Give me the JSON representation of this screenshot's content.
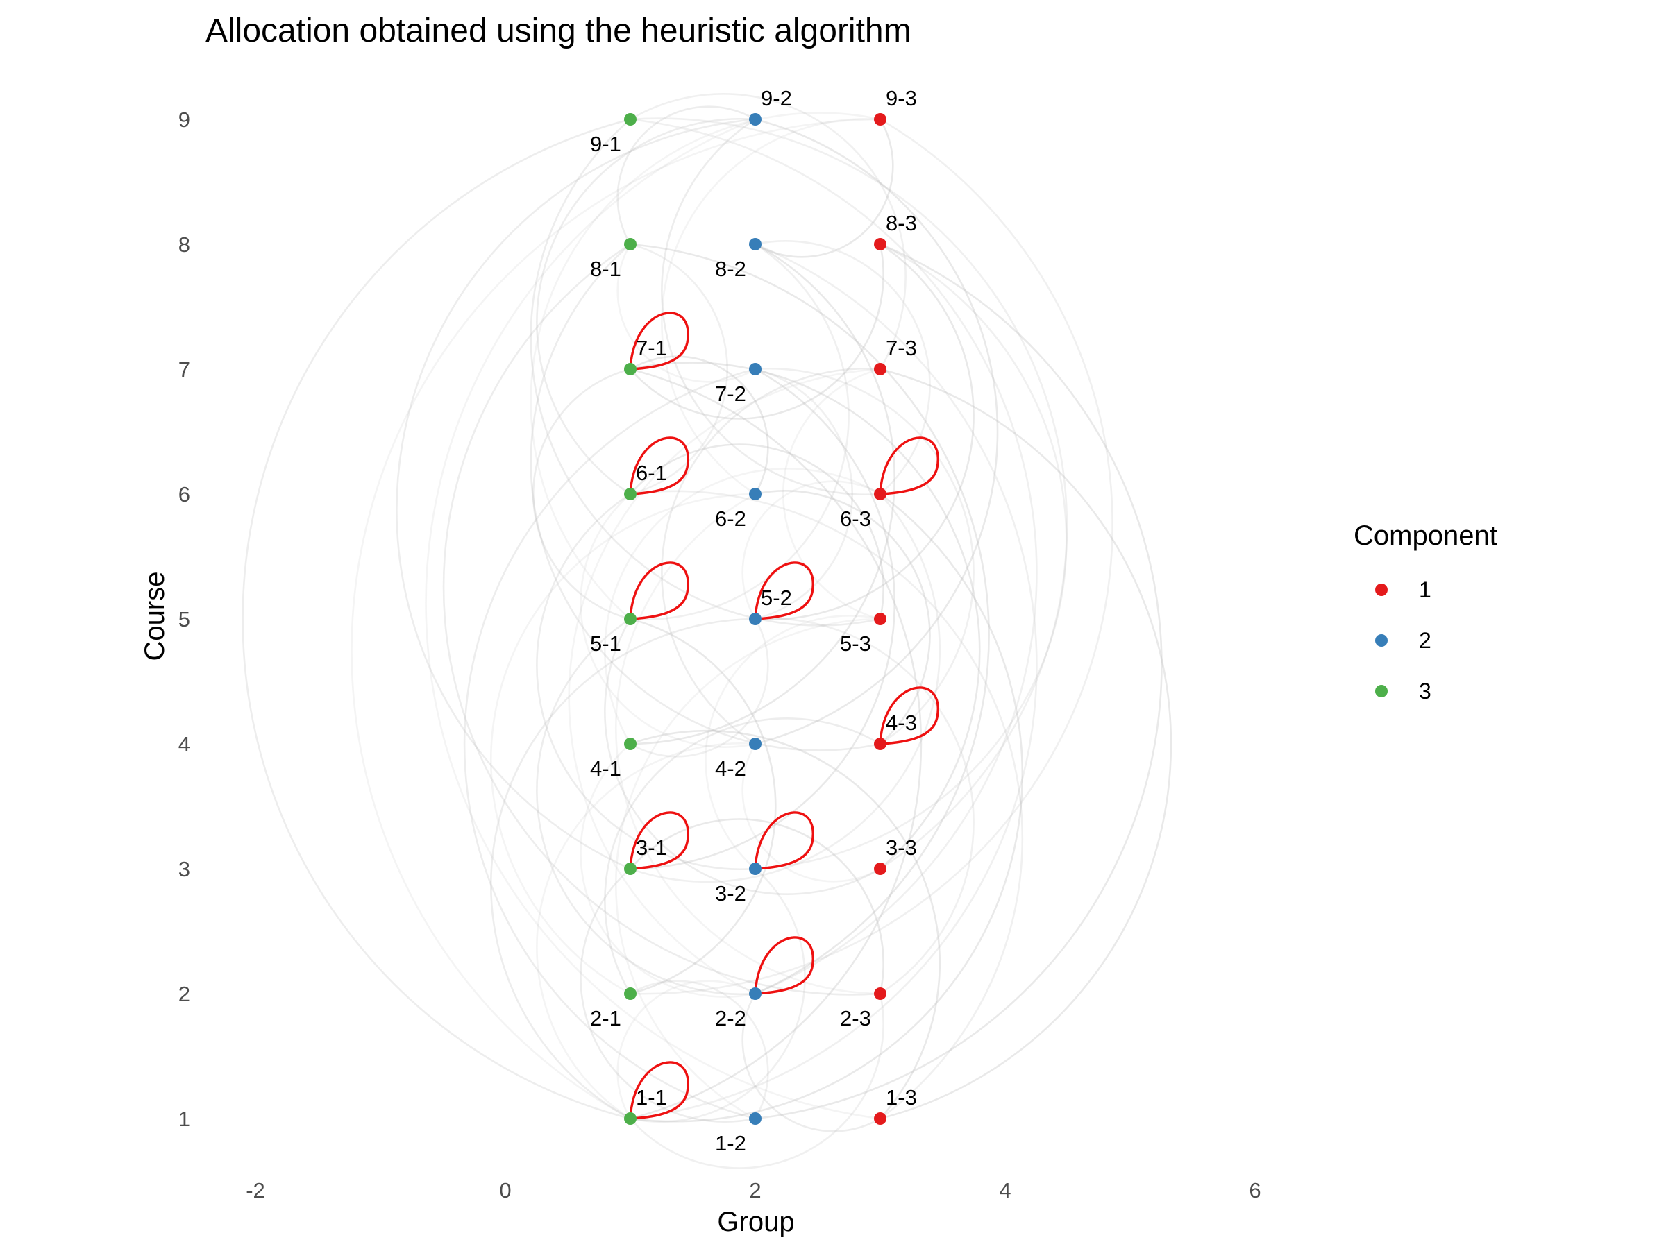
{
  "chart_data": {
    "type": "scatter",
    "title": "Allocation obtained using the heuristic algorithm",
    "xlabel": "Group",
    "ylabel": "Course",
    "xlim": [
      -2.2,
      6.6
    ],
    "ylim": [
      0.6,
      9.4
    ],
    "x_ticks": [
      -2,
      0,
      2,
      4,
      6
    ],
    "y_ticks": [
      1,
      2,
      3,
      4,
      5,
      6,
      7,
      8,
      9
    ],
    "grid": false,
    "legend": {
      "title": "Component",
      "position": "right",
      "entries": [
        {
          "label": "1",
          "color": "#e41a1c"
        },
        {
          "label": "2",
          "color": "#377eb8"
        },
        {
          "label": "3",
          "color": "#4daf4a"
        }
      ]
    },
    "component_colors": {
      "1": "#e41a1c",
      "2": "#377eb8",
      "3": "#4daf4a"
    },
    "self_loop_color": "#ee1111",
    "edge_color": "#b8b8b8",
    "points": [
      {
        "label": "1-1",
        "x": 1,
        "y": 1,
        "component": 3,
        "label_pos": "above"
      },
      {
        "label": "1-2",
        "x": 2,
        "y": 1,
        "component": 2,
        "label_pos": "below"
      },
      {
        "label": "1-3",
        "x": 3,
        "y": 1,
        "component": 1,
        "label_pos": "above"
      },
      {
        "label": "2-1",
        "x": 1,
        "y": 2,
        "component": 3,
        "label_pos": "below"
      },
      {
        "label": "2-2",
        "x": 2,
        "y": 2,
        "component": 2,
        "label_pos": "below"
      },
      {
        "label": "2-3",
        "x": 3,
        "y": 2,
        "component": 1,
        "label_pos": "below"
      },
      {
        "label": "3-1",
        "x": 1,
        "y": 3,
        "component": 3,
        "label_pos": "above"
      },
      {
        "label": "3-2",
        "x": 2,
        "y": 3,
        "component": 2,
        "label_pos": "below"
      },
      {
        "label": "3-3",
        "x": 3,
        "y": 3,
        "component": 1,
        "label_pos": "above"
      },
      {
        "label": "4-1",
        "x": 1,
        "y": 4,
        "component": 3,
        "label_pos": "below"
      },
      {
        "label": "4-2",
        "x": 2,
        "y": 4,
        "component": 2,
        "label_pos": "below"
      },
      {
        "label": "4-3",
        "x": 3,
        "y": 4,
        "component": 1,
        "label_pos": "above"
      },
      {
        "label": "5-1",
        "x": 1,
        "y": 5,
        "component": 3,
        "label_pos": "below"
      },
      {
        "label": "5-2",
        "x": 2,
        "y": 5,
        "component": 2,
        "label_pos": "above"
      },
      {
        "label": "5-3",
        "x": 3,
        "y": 5,
        "component": 1,
        "label_pos": "below"
      },
      {
        "label": "6-1",
        "x": 1,
        "y": 6,
        "component": 3,
        "label_pos": "above"
      },
      {
        "label": "6-2",
        "x": 2,
        "y": 6,
        "component": 2,
        "label_pos": "below"
      },
      {
        "label": "6-3",
        "x": 3,
        "y": 6,
        "component": 1,
        "label_pos": "below"
      },
      {
        "label": "7-1",
        "x": 1,
        "y": 7,
        "component": 3,
        "label_pos": "above"
      },
      {
        "label": "7-2",
        "x": 2,
        "y": 7,
        "component": 2,
        "label_pos": "below"
      },
      {
        "label": "7-3",
        "x": 3,
        "y": 7,
        "component": 1,
        "label_pos": "above"
      },
      {
        "label": "8-1",
        "x": 1,
        "y": 8,
        "component": 3,
        "label_pos": "below"
      },
      {
        "label": "8-2",
        "x": 2,
        "y": 8,
        "component": 2,
        "label_pos": "below"
      },
      {
        "label": "8-3",
        "x": 3,
        "y": 8,
        "component": 1,
        "label_pos": "above"
      },
      {
        "label": "9-1",
        "x": 1,
        "y": 9,
        "component": 3,
        "label_pos": "below"
      },
      {
        "label": "9-2",
        "x": 2,
        "y": 9,
        "component": 2,
        "label_pos": "above"
      },
      {
        "label": "9-3",
        "x": 3,
        "y": 9,
        "component": 1,
        "label_pos": "above"
      }
    ],
    "self_loops": [
      "1-1",
      "2-2",
      "3-1",
      "3-2",
      "4-3",
      "5-1",
      "5-2",
      "6-1",
      "6-3",
      "7-1"
    ],
    "edges": [
      [
        "1-1",
        "2-2"
      ],
      [
        "1-1",
        "8-2"
      ],
      [
        "1-1",
        "9-1"
      ],
      [
        "1-1",
        "6-3"
      ],
      [
        "1-1",
        "4-2"
      ],
      [
        "1-1",
        "2-3"
      ],
      [
        "1-1",
        "5-2"
      ],
      [
        "1-1",
        "7-1"
      ],
      [
        "1-1",
        "9-3"
      ],
      [
        "1-1",
        "3-2"
      ],
      [
        "1-2",
        "3-1"
      ],
      [
        "1-2",
        "8-3"
      ],
      [
        "1-2",
        "5-3"
      ],
      [
        "1-2",
        "2-1"
      ],
      [
        "1-2",
        "7-2"
      ],
      [
        "1-3",
        "4-1"
      ],
      [
        "1-3",
        "9-2"
      ],
      [
        "1-3",
        "6-1"
      ],
      [
        "1-3",
        "2-2"
      ],
      [
        "1-3",
        "7-3"
      ],
      [
        "2-1",
        "6-2"
      ],
      [
        "2-1",
        "9-3"
      ],
      [
        "2-1",
        "4-3"
      ],
      [
        "2-1",
        "5-1"
      ],
      [
        "2-2",
        "7-3"
      ],
      [
        "2-2",
        "9-1"
      ],
      [
        "2-2",
        "5-1"
      ],
      [
        "2-2",
        "8-1"
      ],
      [
        "2-2",
        "4-1"
      ],
      [
        "2-3",
        "5-2"
      ],
      [
        "2-3",
        "8-1"
      ],
      [
        "2-3",
        "3-1"
      ],
      [
        "2-3",
        "6-2"
      ],
      [
        "3-1",
        "6-3"
      ],
      [
        "3-1",
        "9-2"
      ],
      [
        "3-1",
        "7-2"
      ],
      [
        "3-2",
        "5-3"
      ],
      [
        "3-2",
        "8-3"
      ],
      [
        "3-2",
        "6-1"
      ],
      [
        "3-3",
        "7-1"
      ],
      [
        "3-3",
        "4-2"
      ],
      [
        "3-3",
        "9-1"
      ],
      [
        "3-3",
        "5-1"
      ],
      [
        "4-1",
        "8-2"
      ],
      [
        "4-1",
        "6-3"
      ],
      [
        "4-1",
        "5-2"
      ],
      [
        "4-2",
        "7-3"
      ],
      [
        "4-2",
        "9-2"
      ],
      [
        "4-2",
        "6-1"
      ],
      [
        "4-3",
        "7-2"
      ],
      [
        "4-3",
        "8-1"
      ],
      [
        "4-3",
        "6-2"
      ],
      [
        "5-1",
        "9-3"
      ],
      [
        "5-1",
        "8-2"
      ],
      [
        "5-1",
        "7-1"
      ],
      [
        "5-2",
        "8-3"
      ],
      [
        "5-2",
        "6-3"
      ],
      [
        "5-2",
        "7-2"
      ],
      [
        "5-3",
        "9-1"
      ],
      [
        "5-3",
        "6-1"
      ],
      [
        "5-3",
        "7-3"
      ],
      [
        "6-1",
        "8-1"
      ],
      [
        "6-1",
        "9-2"
      ],
      [
        "6-2",
        "7-1"
      ],
      [
        "6-2",
        "9-3"
      ],
      [
        "6-3",
        "8-2"
      ],
      [
        "6-3",
        "9-2"
      ],
      [
        "7-1",
        "8-3"
      ],
      [
        "7-2",
        "8-1"
      ],
      [
        "7-3",
        "9-1"
      ],
      [
        "8-1",
        "9-2"
      ],
      [
        "8-2",
        "9-3"
      ]
    ]
  }
}
